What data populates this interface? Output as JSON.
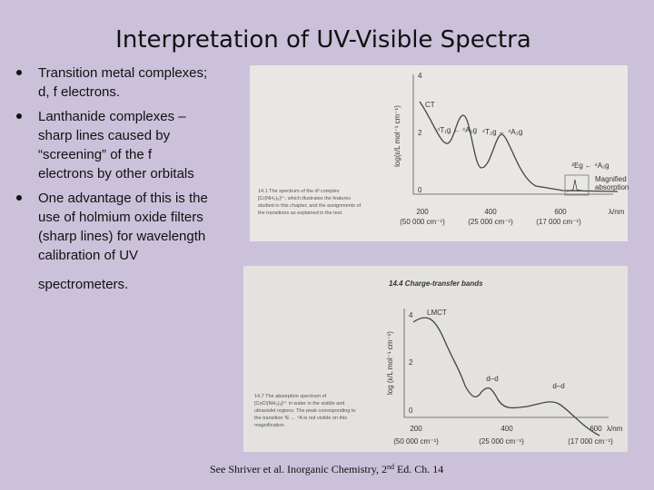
{
  "title": "Interpretation of UV-Visible Spectra",
  "bullets": [
    {
      "lines": [
        "Transition metal complexes;",
        "d, f electrons."
      ]
    },
    {
      "lines": [
        "Lanthanide complexes –",
        "sharp lines caused by",
        "“screening” of the f",
        "electrons by other orbitals"
      ]
    },
    {
      "lines": [
        "One advantage of this is the",
        "use of holmium oxide filters",
        "(sharp lines) for wavelength",
        "calibration of UV",
        "spectrometers."
      ]
    }
  ],
  "figure1": {
    "yaxis_label": "log(ε/L mol⁻¹ cm⁻¹)",
    "yticks": [
      "4",
      "2",
      "0"
    ],
    "xticks": [
      "200",
      "400",
      "600"
    ],
    "xaxis_label": "λ/nm",
    "wavenumbers": [
      "(50 000 cm⁻¹)",
      "(25 000 cm⁻¹)",
      "(17 000 cm⁻¹)"
    ],
    "annotations": [
      "CT",
      "⁴T₁g ← ⁴A₂g",
      "⁴T₂g ← ⁴A₂g",
      "²Eg ← ⁴A₂g",
      "Magnified",
      "absorption"
    ],
    "caption": [
      "14.1 The spectrum of the d³ complex",
      "[Cr(NH₃)₆]³⁺, which illustrates the features",
      "studied in this chapter, and the assignments of",
      "the transitions as explained in the text."
    ]
  },
  "figure2": {
    "heading": "14.4 Charge-transfer bands",
    "yaxis_label": "log (ε/L mol⁻¹ cm⁻¹)",
    "yticks": [
      "4",
      "2",
      "0"
    ],
    "xticks": [
      "200",
      "400",
      "600"
    ],
    "xaxis_label": "λ/nm",
    "wavenumbers": [
      "(50 000 cm⁻¹)",
      "(25 000 cm⁻¹)",
      "(17 000 cm⁻¹)"
    ],
    "annotations": [
      "LMCT",
      "d–d",
      "d–d"
    ],
    "caption": [
      "14.7 The absorption spectrum of",
      "[CoCl(NH₃)₅]²⁺ in water in the visible and",
      "ultraviolet regions. The peak corresponding to",
      "the transition ³E ← ⁴A is not visible on this",
      "magnification."
    ]
  },
  "footer": {
    "text": "See Shriver et al.  Inorganic Chemistry, 2",
    "sup": "nd",
    "after": " Ed.  Ch. 14"
  }
}
